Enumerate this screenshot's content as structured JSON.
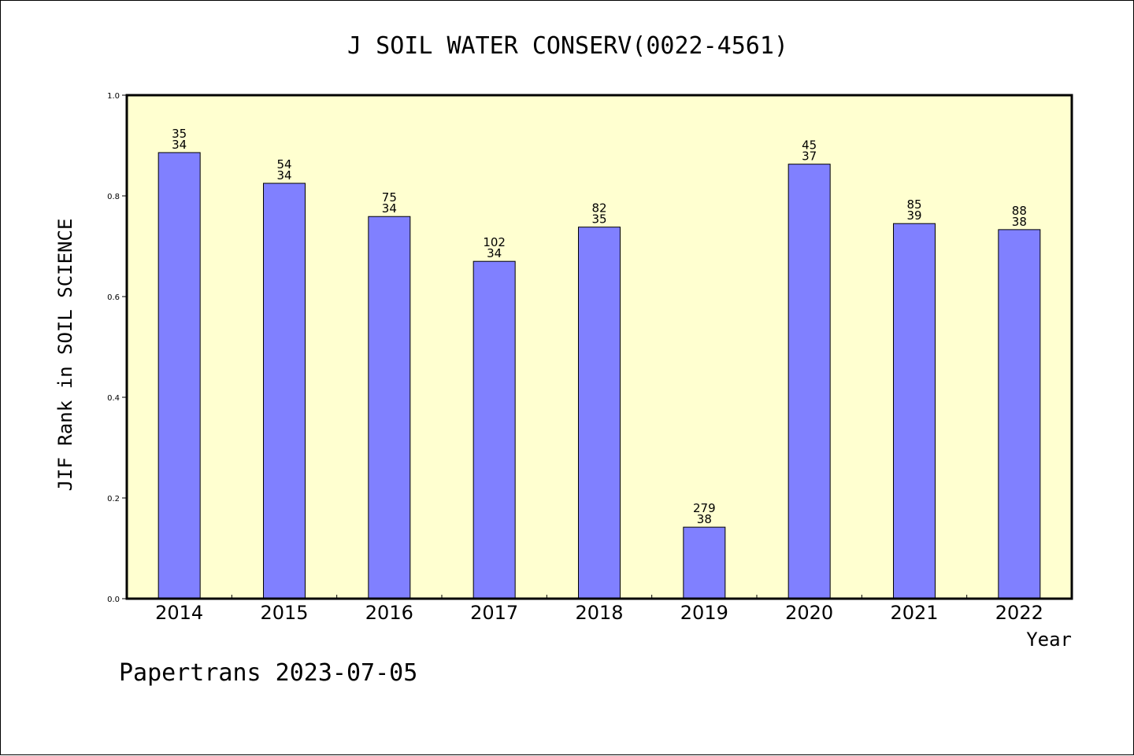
{
  "colors": {
    "plot_background": "#ffffd0",
    "bar_fill": "#8080ff",
    "bar_stroke": "#000000",
    "axis": "#000000"
  },
  "footer": {
    "text": "Papertrans 2023-07-05"
  },
  "chart_data": {
    "type": "bar",
    "title": "J SOIL WATER CONSERV(0022-4561)",
    "xlabel": "Year",
    "ylabel": "JIF Rank in SOIL SCIENCE",
    "ylim": [
      0,
      1.0
    ],
    "yticks": [
      "0.0",
      "0.2",
      "0.4",
      "0.6",
      "0.8",
      "1.0"
    ],
    "grid": false,
    "categories": [
      "2014",
      "2015",
      "2016",
      "2017",
      "2018",
      "2019",
      "2020",
      "2021",
      "2022"
    ],
    "values": [
      0.886,
      0.825,
      0.759,
      0.67,
      0.738,
      0.142,
      0.863,
      0.745,
      0.733
    ],
    "labels_top": [
      "35",
      "54",
      "75",
      "102",
      "82",
      "279",
      "45",
      "85",
      "88"
    ],
    "labels_bottom": [
      "34",
      "34",
      "34",
      "34",
      "35",
      "38",
      "37",
      "39",
      "38"
    ]
  }
}
